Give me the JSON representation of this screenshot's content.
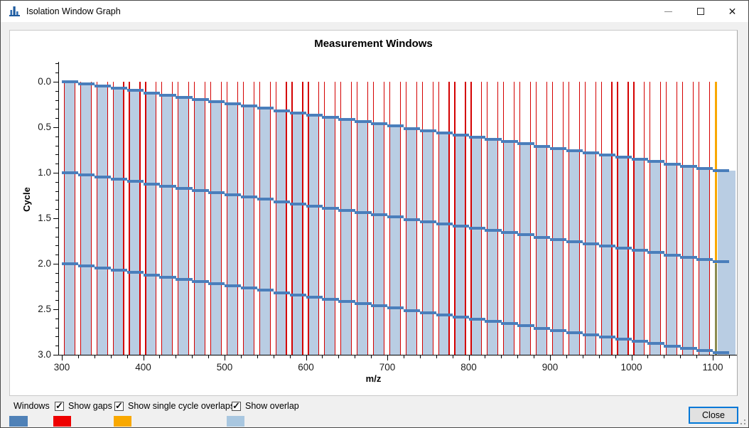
{
  "window": {
    "title": "Isolation Window Graph",
    "controls": {
      "minimize": "minimize",
      "maximize": "maximize",
      "close_glyph": "✕"
    }
  },
  "chart_data": {
    "type": "area",
    "title": "Measurement Windows",
    "xlabel": "m/z",
    "ylabel": "Cycle",
    "x_major_ticks": [
      300,
      400,
      500,
      600,
      700,
      800,
      900,
      1000,
      1100
    ],
    "x_minor_step": 20,
    "y_major_ticks": [
      0.0,
      0.5,
      1.0,
      1.5,
      2.0,
      2.5,
      3.0
    ],
    "y_minor_step": 0.1,
    "xlim": [
      295,
      1130
    ],
    "ylim_cycles": [
      0,
      3
    ],
    "y_axis_inverted": true,
    "grid": false,
    "legend_position": "bottom",
    "cycles": 3,
    "windows_per_cycle": 41,
    "mz_start": 300,
    "mz_end": 1120,
    "window_width_mz": 20,
    "overlap_bar_fraction": 0.65,
    "gap_lines_at_bar_edges": true,
    "single_cycle_overlap_marker": {
      "mz": 1103,
      "cycle_start": 0,
      "cycle_end": 2
    },
    "multi_cycle_overlap_marker": {
      "mz": 1103,
      "cycle_start": 2,
      "cycle_end": 3
    },
    "last_window_bar": {
      "mz_from": 1106,
      "mz_to": 1128
    },
    "colors": {
      "windows": "#4a7ebb",
      "gaps": "#d40000",
      "single_cycle_overlaps": "#f9a800",
      "overlap": "#b9cde3",
      "overlap_deep": "#8b8b4f",
      "axis": "#000000"
    }
  },
  "footer": {
    "windows_label": "Windows",
    "windows_swatch_color": "#4f81b7",
    "checkboxes": [
      {
        "label": "Show gaps",
        "checked": true,
        "swatch_color": "#ee0000"
      },
      {
        "label": "Show single cycle overlaps",
        "checked": true,
        "swatch_color": "#f9a800"
      },
      {
        "label": "Show overlap",
        "checked": true,
        "swatch_color": "#a9c7e0"
      }
    ],
    "close_label": "Close",
    "check_glyph": "✓"
  }
}
